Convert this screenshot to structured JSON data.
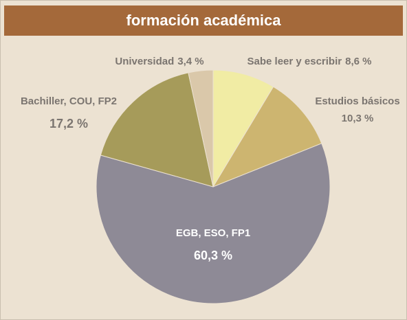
{
  "chart_data": {
    "type": "pie",
    "title": "formación académica",
    "categories": [
      "Sabe leer y escribir",
      "Estudios básicos",
      "EGB, ESO, FP1",
      "Bachiller, COU, FP2",
      "Universidad"
    ],
    "values": [
      8.6,
      10.3,
      60.3,
      17.2,
      3.4
    ],
    "value_labels": [
      "8,6 %",
      "10,3 %",
      "60,3 %",
      "17,2 %",
      "3,4 %"
    ],
    "colors": [
      "#f1eca4",
      "#cdb570",
      "#8e8a96",
      "#a69b5a",
      "#dac8aa"
    ]
  }
}
